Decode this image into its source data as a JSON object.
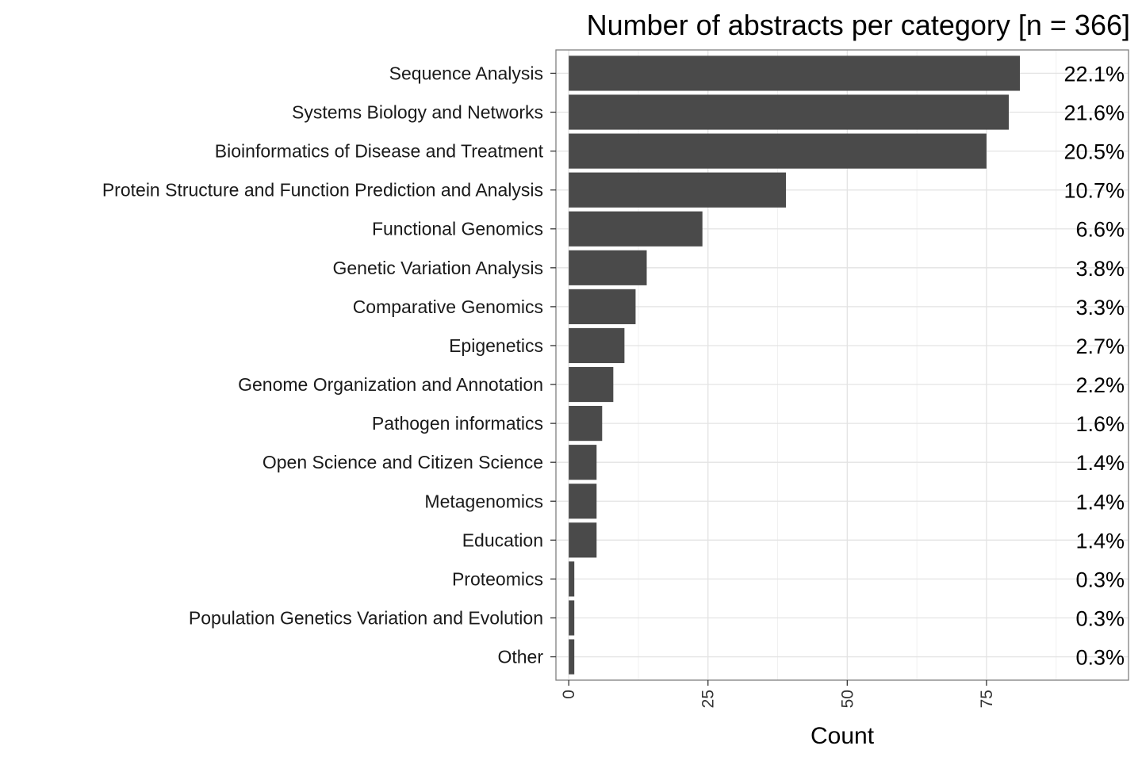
{
  "chart_data": {
    "type": "bar",
    "orientation": "horizontal",
    "title": "Number of abstracts per category [n = 366]",
    "xlabel": "Count",
    "ylabel": "",
    "xlim": [
      -2.3,
      100.5
    ],
    "xticks": [
      0,
      25,
      50,
      75
    ],
    "xtick_labels": [
      "0",
      "25",
      "50",
      "75"
    ],
    "grid": true,
    "categories": [
      "Sequence Analysis",
      "Systems Biology and Networks",
      "Bioinformatics of Disease and Treatment",
      "Protein Structure and Function Prediction and Analysis",
      "Functional Genomics",
      "Genetic Variation Analysis",
      "Comparative Genomics",
      "Epigenetics",
      "Genome Organization and Annotation",
      "Pathogen informatics",
      "Open Science and Citizen Science",
      "Metagenomics",
      "Education",
      "Proteomics",
      "Population Genetics Variation and Evolution",
      "Other"
    ],
    "values": [
      81,
      79,
      75,
      39,
      24,
      14,
      12,
      10,
      8,
      6,
      5,
      5,
      5,
      1,
      1,
      1
    ],
    "percent_labels": [
      "22.1%",
      "21.6%",
      "20.5%",
      "10.7%",
      "6.6%",
      "3.8%",
      "3.3%",
      "2.7%",
      "2.2%",
      "1.6%",
      "1.4%",
      "1.4%",
      "1.4%",
      "0.3%",
      "0.3%",
      "0.3%"
    ],
    "colors": {
      "bar": "#4a4a4a",
      "panel_border": "#808080",
      "grid_major": "#e3e3e3",
      "grid_minor": "#f1f1f1",
      "tick": "#333333"
    }
  }
}
